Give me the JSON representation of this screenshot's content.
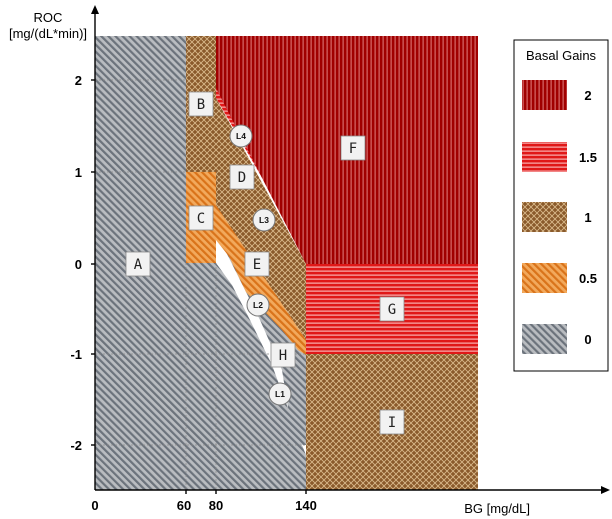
{
  "axes": {
    "y_title_line1": "ROC",
    "y_title_line2": "[mg/(dL*min)]",
    "x_title": "BG [mg/dL]",
    "x_ticks": [
      "0",
      "60",
      "80",
      "140"
    ],
    "y_ticks": [
      "2",
      "1",
      "0",
      "-1",
      "-2"
    ]
  },
  "regions": {
    "A": "A",
    "B": "B",
    "C": "C",
    "D": "D",
    "E": "E",
    "F": "F",
    "G": "G",
    "H": "H",
    "I": "I"
  },
  "limits": {
    "L1": "L1",
    "L2": "L2",
    "L3": "L3",
    "L4": "L4"
  },
  "legend": {
    "title": "Basal Gains",
    "items": [
      {
        "label": "2",
        "color": "#a00000",
        "pattern": "vertical-lines"
      },
      {
        "label": "1.5",
        "color": "#e01010",
        "pattern": "horizontal-lines"
      },
      {
        "label": "1",
        "color": "#8a5a2b",
        "pattern": "crosshatch"
      },
      {
        "label": "0.5",
        "color": "#e8862a",
        "pattern": "diagonal-lines"
      },
      {
        "label": "0",
        "color": "#7d8590",
        "pattern": "diagonal-lines"
      }
    ]
  }
}
